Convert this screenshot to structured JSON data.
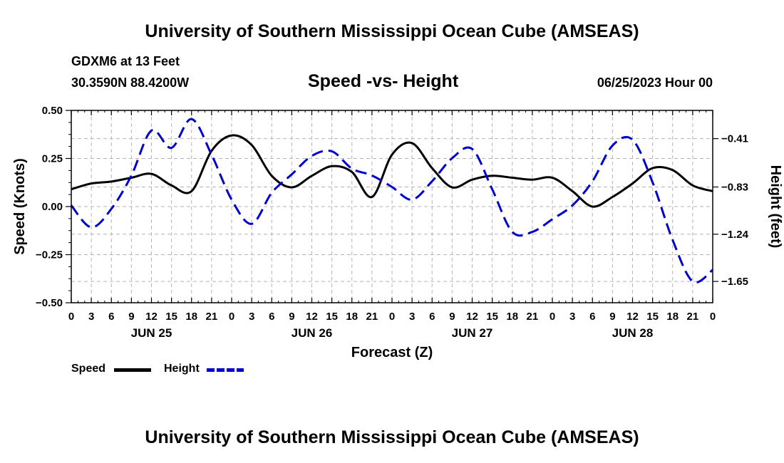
{
  "header": {
    "title_top": "University of Southern Mississippi Ocean Cube (AMSEAS)",
    "title_bottom": "University of Southern Mississippi Ocean Cube (AMSEAS)",
    "station": "GDXM6 at 13 Feet",
    "location": "30.3590N  88.4200W",
    "chart_title": "Speed -vs- Height",
    "date": "06/25/2023 Hour 00"
  },
  "legend": {
    "speed_label": "Speed",
    "height_label": "Height"
  },
  "colors": {
    "speed": "#000000",
    "height": "#0000cc",
    "grid": "#b4b4b4"
  },
  "chart_data": {
    "type": "line",
    "title": "Speed -vs- Height",
    "xlabel": "Forecast (Z)",
    "ylabel": "Speed (Knots)",
    "y2label": "Height (feet)",
    "x_range": [
      0,
      96
    ],
    "x_ticks": [
      0,
      3,
      6,
      9,
      12,
      15,
      18,
      21,
      24,
      27,
      30,
      33,
      36,
      39,
      42,
      45,
      48,
      51,
      54,
      57,
      60,
      63,
      66,
      69,
      72,
      75,
      78,
      81,
      84,
      87,
      90,
      93,
      96
    ],
    "x_tick_labels": [
      "0",
      "3",
      "6",
      "9",
      "12",
      "15",
      "18",
      "21",
      "0",
      "3",
      "6",
      "9",
      "12",
      "15",
      "18",
      "21",
      "0",
      "3",
      "6",
      "9",
      "12",
      "15",
      "18",
      "21",
      "0",
      "3",
      "6",
      "9",
      "12",
      "15",
      "18",
      "21",
      "0"
    ],
    "day_labels": [
      {
        "x": 12,
        "label": "JUN 25"
      },
      {
        "x": 36,
        "label": "JUN 26"
      },
      {
        "x": 60,
        "label": "JUN 27"
      },
      {
        "x": 84,
        "label": "JUN 28"
      }
    ],
    "ylim": [
      -0.5,
      0.5
    ],
    "y_ticks": [
      -0.5,
      -0.25,
      0.0,
      0.25,
      0.5
    ],
    "y_tick_labels": [
      "−0.50",
      "−0.25",
      "0.00",
      "0.25",
      "0.50"
    ],
    "y2lim": [
      -1.835,
      -0.165
    ],
    "y2_ticks": [
      -0.41,
      -0.83,
      -1.24,
      -1.65
    ],
    "y2_tick_labels": [
      "−0.41",
      "−0.83",
      "−1.24",
      "−1.65"
    ],
    "series": [
      {
        "name": "Speed",
        "axis": "left",
        "x": [
          0,
          3,
          6,
          9,
          12,
          15,
          18,
          21,
          24,
          27,
          30,
          33,
          36,
          39,
          42,
          45,
          48,
          51,
          54,
          57,
          60,
          63,
          66,
          69,
          72,
          75,
          78,
          81,
          84,
          87,
          90,
          93,
          96
        ],
        "values": [
          0.09,
          0.12,
          0.13,
          0.15,
          0.17,
          0.11,
          0.08,
          0.29,
          0.37,
          0.32,
          0.16,
          0.1,
          0.16,
          0.21,
          0.18,
          0.05,
          0.27,
          0.33,
          0.2,
          0.1,
          0.14,
          0.16,
          0.15,
          0.14,
          0.15,
          0.08,
          0.0,
          0.05,
          0.12,
          0.2,
          0.19,
          0.11,
          0.08
        ]
      },
      {
        "name": "Height",
        "axis": "right",
        "x": [
          0,
          3,
          6,
          9,
          12,
          15,
          18,
          21,
          24,
          27,
          30,
          33,
          36,
          39,
          42,
          45,
          48,
          51,
          54,
          57,
          60,
          63,
          66,
          69,
          72,
          75,
          78,
          81,
          84,
          87,
          90,
          93,
          96
        ],
        "values": [
          -0.99,
          -1.18,
          -1.02,
          -0.73,
          -0.34,
          -0.49,
          -0.24,
          -0.55,
          -0.94,
          -1.15,
          -0.88,
          -0.72,
          -0.56,
          -0.52,
          -0.67,
          -0.73,
          -0.83,
          -0.94,
          -0.78,
          -0.58,
          -0.5,
          -0.85,
          -1.22,
          -1.22,
          -1.11,
          -0.99,
          -0.78,
          -0.47,
          -0.42,
          -0.79,
          -1.29,
          -1.65,
          -1.55
        ]
      }
    ]
  }
}
